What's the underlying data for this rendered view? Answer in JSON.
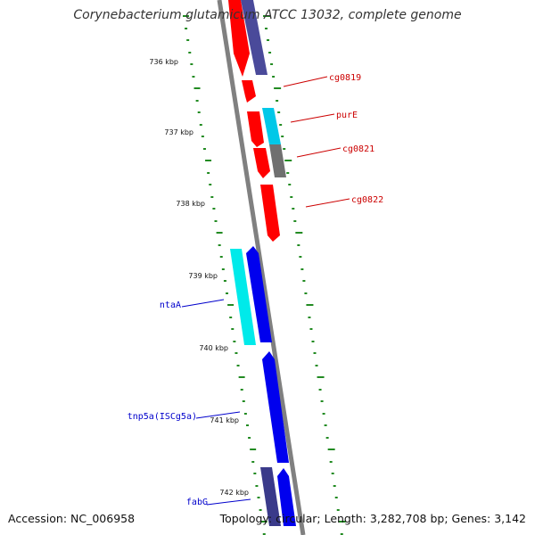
{
  "header": {
    "title": "Corynebacterium glutamicum ATCC 13032, complete genome"
  },
  "footer": {
    "accession": "Accession: NC_006958",
    "summary": "Topology: circular; Length: 3,282,708 bp; Genes: 3,142"
  },
  "kbp_labels": [
    "736 kbp",
    "737 kbp",
    "738 kbp",
    "739 kbp",
    "740 kbp",
    "741 kbp",
    "742 kbp"
  ],
  "gene_labels": [
    "cg0819",
    "purE",
    "cg0821",
    "cg0822",
    "ntaA",
    "tnp5a(ISCg5a)",
    "fabG"
  ],
  "colors": {
    "forward": "#ff0000",
    "reverse": "#0000ee",
    "cyan": "#00c8e8",
    "navy": "#4a4a9a",
    "gray": "#707070",
    "backbone": "#808080",
    "ticks": "#228b22",
    "forward_label": "#cc0000",
    "reverse_label": "#0000cc"
  }
}
